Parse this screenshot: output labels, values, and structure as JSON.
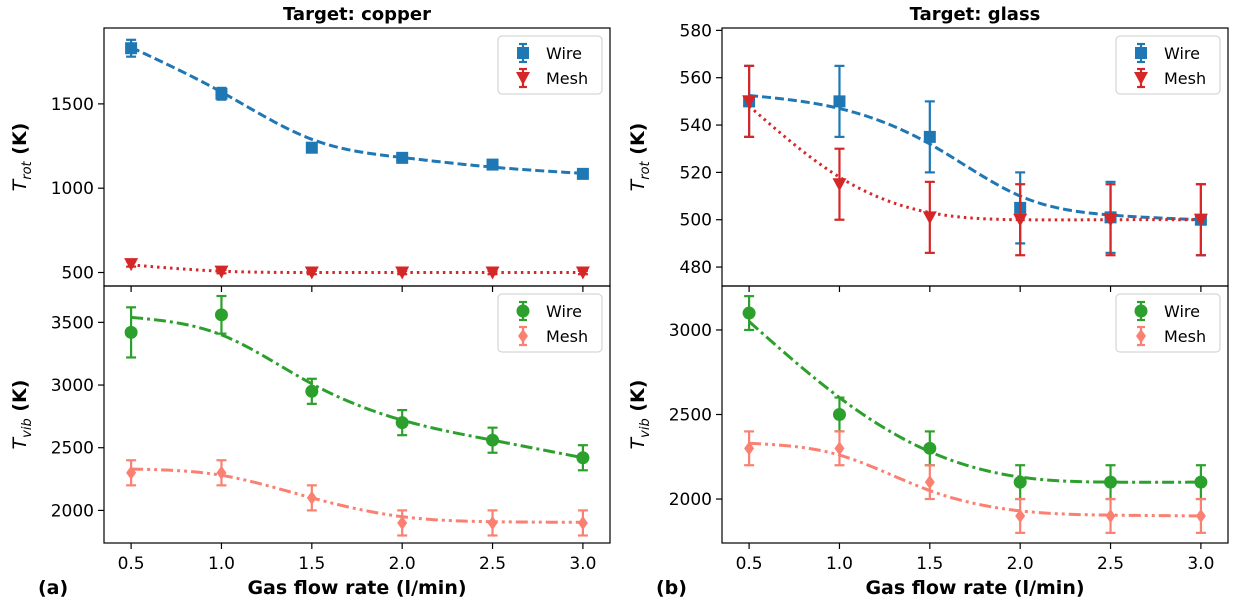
{
  "chart_data": [
    {
      "type": "line",
      "panel": "top-left",
      "title": "Target: copper",
      "panel_label": "",
      "xlabel": "",
      "ylabel_main": "T",
      "ylabel_sub": "rot",
      "ylabel_unit": " (K)",
      "xlim": [
        0.35,
        3.15
      ],
      "ylim": [
        420,
        1950
      ],
      "xticks": [
        0.5,
        1.0,
        1.5,
        2.0,
        2.5,
        3.0
      ],
      "xtick_labels_shown": false,
      "yticks": [
        500,
        1000,
        1500
      ],
      "legend": "top-right",
      "x": [
        0.5,
        1.0,
        1.5,
        2.0,
        2.5,
        3.0
      ],
      "series": [
        {
          "name": "Wire",
          "marker": "square",
          "color": "#1f77b4",
          "line": "dashed",
          "values": [
            1830,
            1560,
            1240,
            1180,
            1140,
            1085
          ],
          "errors": [
            50,
            35,
            25,
            20,
            20,
            20
          ],
          "fit": [
            1835,
            1570,
            1290,
            1182,
            1125,
            1088
          ]
        },
        {
          "name": "Mesh",
          "marker": "triangle-down",
          "color": "#d62728",
          "line": "dotted",
          "values": [
            550,
            505,
            500,
            500,
            500,
            500
          ],
          "errors": [
            15,
            10,
            10,
            10,
            10,
            10
          ],
          "fit": [
            545,
            508,
            500,
            500,
            500,
            500
          ]
        }
      ]
    },
    {
      "type": "line",
      "panel": "bottom-left",
      "title": "",
      "panel_label": "(a)",
      "xlabel": "Gas flow rate (l/min)",
      "ylabel_main": "T",
      "ylabel_sub": "vib",
      "ylabel_unit": " (K)",
      "xlim": [
        0.35,
        3.15
      ],
      "ylim": [
        1740,
        3790
      ],
      "xticks": [
        0.5,
        1.0,
        1.5,
        2.0,
        2.5,
        3.0
      ],
      "xtick_labels": [
        "0.5",
        "1.0",
        "1.5",
        "2.0",
        "2.5",
        "3.0"
      ],
      "xtick_labels_shown": true,
      "yticks": [
        2000,
        2500,
        3000,
        3500
      ],
      "legend": "top-right",
      "x": [
        0.5,
        1.0,
        1.5,
        2.0,
        2.5,
        3.0
      ],
      "series": [
        {
          "name": "Wire",
          "marker": "circle",
          "color": "#2ca02c",
          "line": "dashdot",
          "values": [
            3420,
            3560,
            2950,
            2700,
            2560,
            2420
          ],
          "errors": [
            200,
            150,
            100,
            100,
            100,
            100
          ],
          "fit": [
            3540,
            3400,
            3010,
            2720,
            2560,
            2420
          ]
        },
        {
          "name": "Mesh",
          "marker": "diamond",
          "color": "#fa8072",
          "line": "dashdotdot",
          "values": [
            2300,
            2300,
            2100,
            1900,
            1900,
            1900
          ],
          "errors": [
            100,
            100,
            100,
            100,
            100,
            100
          ],
          "fit": [
            2330,
            2280,
            2100,
            1950,
            1910,
            1905
          ]
        }
      ]
    },
    {
      "type": "line",
      "panel": "top-right",
      "title": "Target: glass",
      "panel_label": "",
      "xlabel": "",
      "ylabel_main": "T",
      "ylabel_sub": "rot",
      "ylabel_unit": " (K)",
      "xlim": [
        0.35,
        3.15
      ],
      "ylim": [
        472,
        581
      ],
      "xticks": [
        0.5,
        1.0,
        1.5,
        2.0,
        2.5,
        3.0
      ],
      "xtick_labels_shown": false,
      "yticks": [
        480,
        500,
        520,
        540,
        560,
        580
      ],
      "legend": "top-right",
      "x": [
        0.5,
        1.0,
        1.5,
        2.0,
        2.5,
        3.0
      ],
      "series": [
        {
          "name": "Wire",
          "marker": "square",
          "color": "#1f77b4",
          "line": "dashed",
          "values": [
            550,
            550,
            535,
            505,
            501,
            500
          ],
          "errors": [
            15,
            15,
            15,
            15,
            15,
            15
          ],
          "fit": [
            552.5,
            547,
            532,
            510,
            502,
            500
          ]
        },
        {
          "name": "Mesh",
          "marker": "triangle-down",
          "color": "#d62728",
          "line": "dotted",
          "values": [
            550,
            515,
            501,
            500,
            500,
            500
          ],
          "errors": [
            15,
            15,
            15,
            15,
            15,
            15
          ],
          "fit": [
            548,
            518,
            503,
            500,
            500,
            500
          ]
        }
      ]
    },
    {
      "type": "line",
      "panel": "bottom-right",
      "title": "",
      "panel_label": "(b)",
      "xlabel": "Gas flow rate (l/min)",
      "ylabel_main": "T",
      "ylabel_sub": "vib",
      "ylabel_unit": " (K)",
      "xlim": [
        0.35,
        3.15
      ],
      "ylim": [
        1740,
        3260
      ],
      "xticks": [
        0.5,
        1.0,
        1.5,
        2.0,
        2.5,
        3.0
      ],
      "xtick_labels": [
        "0.5",
        "1.0",
        "1.5",
        "2.0",
        "2.5",
        "3.0"
      ],
      "xtick_labels_shown": true,
      "yticks": [
        2000,
        2500,
        3000
      ],
      "legend": "top-right",
      "x": [
        0.5,
        1.0,
        1.5,
        2.0,
        2.5,
        3.0
      ],
      "series": [
        {
          "name": "Wire",
          "marker": "circle",
          "color": "#2ca02c",
          "line": "dashdot",
          "values": [
            3100,
            2500,
            2300,
            2100,
            2100,
            2100
          ],
          "errors": [
            100,
            100,
            100,
            100,
            100,
            100
          ],
          "fit": [
            3050,
            2600,
            2280,
            2130,
            2100,
            2100
          ]
        },
        {
          "name": "Mesh",
          "marker": "diamond",
          "color": "#fa8072",
          "line": "dashdotdot",
          "values": [
            2300,
            2300,
            2100,
            1900,
            1900,
            1900
          ],
          "errors": [
            100,
            100,
            100,
            100,
            100,
            100
          ],
          "fit": [
            2330,
            2260,
            2050,
            1930,
            1905,
            1900
          ]
        }
      ]
    }
  ]
}
